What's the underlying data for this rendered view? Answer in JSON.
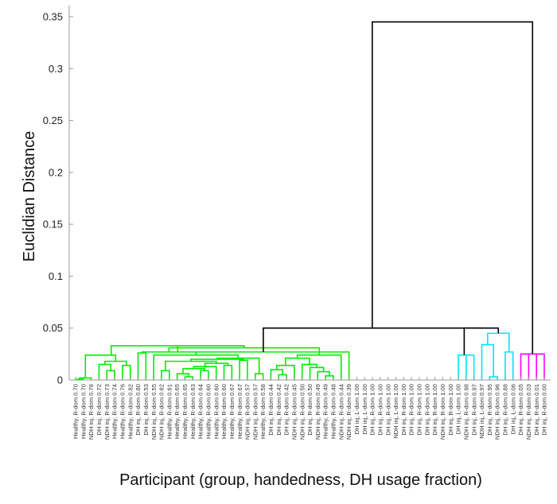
{
  "chart_data": {
    "type": "dendrogram",
    "ylabel": "Euclidian Distance",
    "xlabel": "Participant (group, handedness, DH usage fraction)",
    "ylim": [
      0,
      0.35
    ],
    "yticks": [
      0,
      0.05,
      0.1,
      0.15,
      0.2,
      0.25,
      0.3,
      0.35
    ],
    "ytick_labels": [
      "0",
      "0.05",
      "0.1",
      "0.15",
      "0.2",
      "0.25",
      "0.3",
      "0.35"
    ],
    "colors": {
      "green": "#00ee00",
      "cyan": "#00e5ff",
      "magenta": "#ff00ff",
      "black": "#000000",
      "axis": "#999999"
    },
    "leaves": [
      "Healthy, R-dom 0.70",
      "Healthy, R-dom 0.70",
      "NDH inj, R-dom 0.78",
      "DH inj, R-dom 0.72",
      "NDH inj, R-dom 0.73",
      "Healthy, R-dom 0.74",
      "Healthy, R-dom 0.76",
      "Healthy, R-dom 0.82",
      "DH inj, R-dom 0.80",
      "DH inj, R-dom 0.53",
      "NDH inj, R-dom 0.55",
      "NDH inj, R-dom 0.62",
      "Healthy, R-dom 0.61",
      "Healthy, R-dom 0.65",
      "Healthy, R-dom 0.65",
      "Healthy, R-dom 0.63",
      "Healthy, R-dom 0.64",
      "Healthy, R-dom 0.60",
      "Healthy, R-dom 0.60",
      "Healthy, R-dom 0.60",
      "Healthy, R-dom 0.67",
      "Healthy, R-dom 0.67",
      "NDH inj, R-dom 0.57",
      "NDH inj, R-dom 0.57",
      "Healthy, R-dom 0.58",
      "DH inj, R-dom 0.44",
      "DH inj, R-dom 0.42",
      "DH inj, R-dom 0.42",
      "NDH inj, R-dom 0.45",
      "NDH inj, R-dom 0.50",
      "DH inj, R-dom 0.50",
      "NDH inj, R-dom 0.49",
      "Healthy, R-dom 0.49",
      "Healthy, R-dom 0.48",
      "NDH inj, R-dom 0.44",
      "NDH inj, R-dom 0.39",
      "DH inj, L-dom 1.00",
      "DH inj, L-dom 1.00",
      "DH inj, R-dom 1.00",
      "DH inj, R-dom 1.00",
      "DH inj, R-dom 1.00",
      "NDH inj, L-dom 1.00",
      "DH inj, R-dom 1.00",
      "DH inj, R-dom 1.00",
      "DH inj, R-dom 1.00",
      "DH inj, R-dom 1.00",
      "DH inj, R-dom 1.00",
      "NDH inj, R-dom 1.00",
      "DH inj, R-dom 1.00",
      "DH inj, L-dom 1.00",
      "NDH inj, R-dom 0.98",
      "DH inj, R-dom 0.97",
      "NDH inj, L-dom 0.97",
      "DH inj, R-dom 0.95",
      "NDH inj, R-dom 0.96",
      "DH inj, R-dom 0.88",
      "DH inj, L-dom 0.06",
      "DH inj, R-dom 0.05",
      "NDH inj, R-dom 0.03",
      "DH inj, R-dom 0.01",
      "DH inj, R-dom 0.00"
    ],
    "links": [
      {
        "a": [
          0,
          0
        ],
        "b": [
          1,
          0
        ],
        "h": 0.0005,
        "color": "green"
      },
      {
        "a": [
          0.5,
          0.0005
        ],
        "b": [
          2,
          0
        ],
        "h": 0.002,
        "color": "green"
      },
      {
        "a": [
          4,
          0
        ],
        "b": [
          5,
          0
        ],
        "h": 0.009,
        "color": "green"
      },
      {
        "a": [
          3,
          0
        ],
        "b": [
          4.5,
          0.009
        ],
        "h": 0.015,
        "color": "green"
      },
      {
        "a": [
          6,
          0
        ],
        "b": [
          7,
          0
        ],
        "h": 0.014,
        "color": "green"
      },
      {
        "a": [
          3.75,
          0.015
        ],
        "b": [
          6.5,
          0.014
        ],
        "h": 0.018,
        "color": "green"
      },
      {
        "a": [
          1.25,
          0.002
        ],
        "b": [
          5.125,
          0.018
        ],
        "h": 0.024,
        "color": "green"
      },
      {
        "a": [
          8,
          0
        ],
        "b": [
          9,
          0
        ],
        "h": 0.026,
        "color": "green"
      },
      {
        "a": [
          11,
          0
        ],
        "b": [
          12,
          0
        ],
        "h": 0.009,
        "color": "green"
      },
      {
        "a": [
          14,
          0
        ],
        "b": [
          15,
          0
        ],
        "h": 0.003,
        "color": "green"
      },
      {
        "a": [
          13,
          0
        ],
        "b": [
          14.5,
          0.003
        ],
        "h": 0.006,
        "color": "green"
      },
      {
        "a": [
          16,
          0
        ],
        "b": [
          17,
          0
        ],
        "h": 0.009,
        "color": "green"
      },
      {
        "a": [
          13.75,
          0.006
        ],
        "b": [
          16.5,
          0.009
        ],
        "h": 0.011,
        "color": "green"
      },
      {
        "a": [
          15.125,
          0.011
        ],
        "b": [
          18,
          0
        ],
        "h": 0.013,
        "color": "green"
      },
      {
        "a": [
          19,
          0
        ],
        "b": [
          20,
          0
        ],
        "h": 0.014,
        "color": "green"
      },
      {
        "a": [
          16.5625,
          0.013
        ],
        "b": [
          19.5,
          0.014
        ],
        "h": 0.016,
        "color": "green"
      },
      {
        "a": [
          11.5,
          0.009
        ],
        "b": [
          18.03,
          0.016
        ],
        "h": 0.018,
        "color": "green"
      },
      {
        "a": [
          21,
          0
        ],
        "b": [
          22,
          0
        ],
        "h": 0.019,
        "color": "green"
      },
      {
        "a": [
          14.77,
          0.018
        ],
        "b": [
          21.5,
          0.019
        ],
        "h": 0.02,
        "color": "green"
      },
      {
        "a": [
          23,
          0
        ],
        "b": [
          24,
          0
        ],
        "h": 0.006,
        "color": "green"
      },
      {
        "a": [
          18.13,
          0.02
        ],
        "b": [
          23.5,
          0.006
        ],
        "h": 0.021,
        "color": "green"
      },
      {
        "a": [
          10,
          0
        ],
        "b": [
          20.82,
          0.021
        ],
        "h": 0.024,
        "color": "green"
      },
      {
        "a": [
          8.5,
          0.026
        ],
        "b": [
          15.41,
          0.024
        ],
        "h": 0.027,
        "color": "green"
      },
      {
        "a": [
          26,
          0
        ],
        "b": [
          27,
          0
        ],
        "h": 0.005,
        "color": "green"
      },
      {
        "a": [
          25,
          0
        ],
        "b": [
          26.5,
          0.005
        ],
        "h": 0.01,
        "color": "green"
      },
      {
        "a": [
          25.75,
          0.01
        ],
        "b": [
          28,
          0
        ],
        "h": 0.014,
        "color": "green"
      },
      {
        "a": [
          32,
          0
        ],
        "b": [
          33,
          0
        ],
        "h": 0.004,
        "color": "green"
      },
      {
        "a": [
          31,
          0
        ],
        "b": [
          32.5,
          0.004
        ],
        "h": 0.008,
        "color": "green"
      },
      {
        "a": [
          30,
          0
        ],
        "b": [
          31.75,
          0.008
        ],
        "h": 0.012,
        "color": "green"
      },
      {
        "a": [
          29,
          0
        ],
        "b": [
          30.87,
          0.012
        ],
        "h": 0.015,
        "color": "green"
      },
      {
        "a": [
          26.87,
          0.014
        ],
        "b": [
          29.94,
          0.015
        ],
        "h": 0.021,
        "color": "green"
      },
      {
        "a": [
          28.4,
          0.021
        ],
        "b": [
          34,
          0
        ],
        "h": 0.024,
        "color": "green"
      },
      {
        "a": [
          11.95,
          0.027
        ],
        "b": [
          31.2,
          0.024
        ],
        "h": 0.031,
        "color": "green"
      },
      {
        "a": [
          4.56,
          0.024
        ],
        "b": [
          21.58,
          0.031
        ],
        "h": 0.033,
        "color": "green"
      },
      {
        "a": [
          13.07,
          0.033
        ],
        "b": [
          35,
          0
        ],
        "h": 0.027,
        "color": "green"
      },
      {
        "a": [
          50,
          0
        ],
        "b": [
          51,
          0
        ],
        "h": 0.024,
        "color": "cyan"
      },
      {
        "a": [
          49,
          0
        ],
        "b": [
          50.5,
          0.024
        ],
        "h": 0.024,
        "color": "cyan"
      },
      {
        "a": [
          53,
          0
        ],
        "b": [
          54,
          0
        ],
        "h": 0.003,
        "color": "cyan"
      },
      {
        "a": [
          52,
          0
        ],
        "b": [
          53.5,
          0.003
        ],
        "h": 0.034,
        "color": "cyan"
      },
      {
        "a": [
          55,
          0
        ],
        "b": [
          56,
          0
        ],
        "h": 0.027,
        "color": "cyan"
      },
      {
        "a": [
          52.75,
          0.034
        ],
        "b": [
          55.5,
          0.027
        ],
        "h": 0.045,
        "color": "cyan"
      },
      {
        "a": [
          49.75,
          0.024
        ],
        "b": [
          54.12,
          0.045
        ],
        "h": 0.05,
        "color": "black"
      },
      {
        "a": [
          24.03,
          0.027
        ],
        "b": [
          51.94,
          0.05
        ],
        "h": 0.05,
        "color": "black"
      },
      {
        "a": [
          57,
          0
        ],
        "b": [
          58,
          0
        ],
        "h": 0.025,
        "color": "magenta"
      },
      {
        "a": [
          59,
          0
        ],
        "b": [
          60,
          0
        ],
        "h": 0.025,
        "color": "magenta"
      },
      {
        "a": [
          57.5,
          0.025
        ],
        "b": [
          59.5,
          0.025
        ],
        "h": 0.025,
        "color": "magenta"
      },
      {
        "a": [
          37.98,
          0.05
        ],
        "b": [
          58.5,
          0.025
        ],
        "h": 0.345,
        "color": "black"
      }
    ]
  }
}
